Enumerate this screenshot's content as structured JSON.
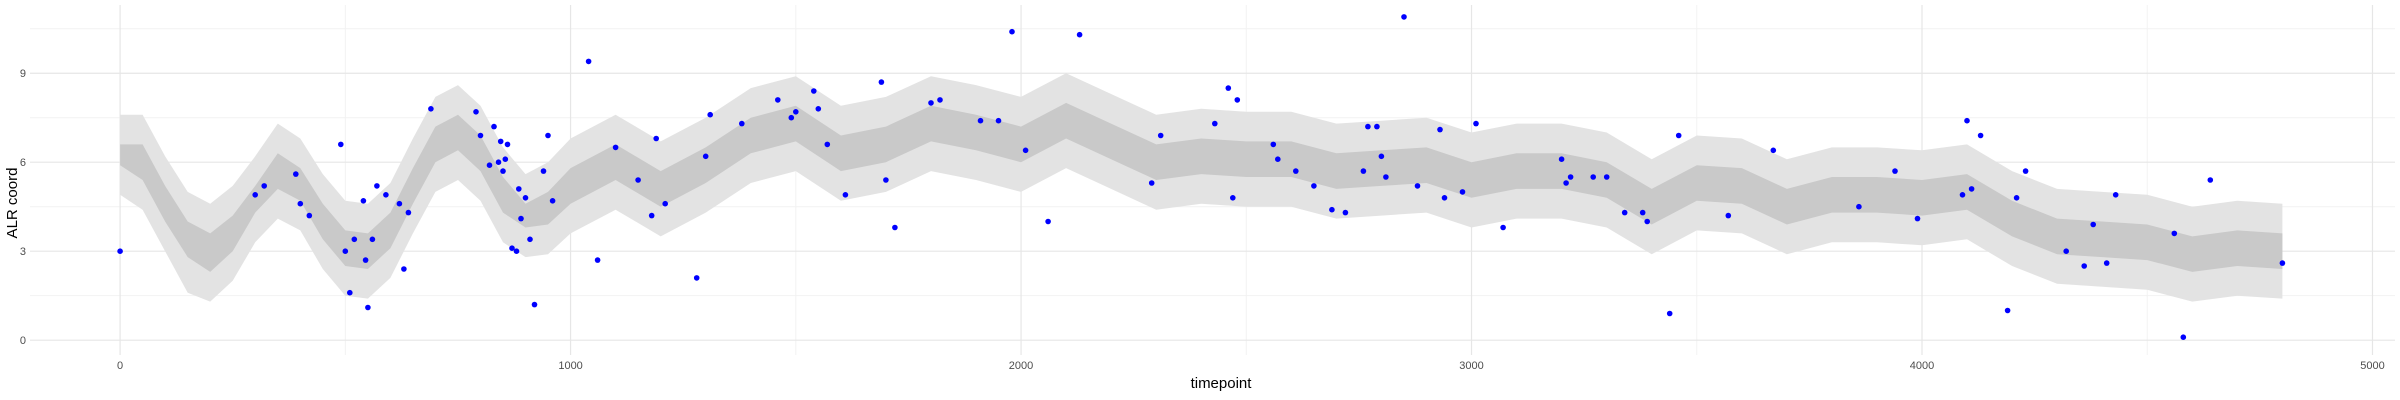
{
  "chart_data": {
    "type": "line",
    "title": "",
    "xlabel": "timepoint",
    "ylabel": "ALR coord",
    "xlim": [
      -200,
      5050
    ],
    "ylim": [
      -0.5,
      11.3
    ],
    "x_ticks": [
      0,
      1000,
      2000,
      3000,
      4000,
      5000
    ],
    "x_tick_labels": [
      "0",
      "1000",
      "2000",
      "3000",
      "4000",
      "5000"
    ],
    "y_ticks": [
      0,
      3,
      6,
      9
    ],
    "y_tick_labels": [
      "0",
      "3",
      "6",
      "9"
    ],
    "grid": true,
    "legend": "none",
    "colors": {
      "inner_band": "#c9c9c9",
      "outer_band": "#e3e3e3",
      "points": "#0000ff",
      "grid_major": "#e6e6e6",
      "grid_minor": "#f2f2f2"
    },
    "series": [
      {
        "kind": "band",
        "x": [
          0,
          50,
          100,
          150,
          200,
          250,
          300,
          350,
          400,
          450,
          500,
          550,
          600,
          650,
          700,
          750,
          800,
          850,
          900,
          950,
          1000,
          1100,
          1200,
          1300,
          1400,
          1500,
          1600,
          1700,
          1800,
          1900,
          2000,
          2100,
          2200,
          2300,
          2400,
          2500,
          2600,
          2700,
          2800,
          2900,
          3000,
          3100,
          3200,
          3300,
          3400,
          3500,
          3600,
          3700,
          3800,
          3900,
          4000,
          4100,
          4200,
          4300,
          4400,
          4500,
          4600,
          4700,
          4800
        ],
        "inner_low": [
          5.9,
          5.4,
          4.0,
          2.8,
          2.3,
          3.0,
          4.3,
          5.1,
          4.7,
          3.4,
          2.5,
          2.4,
          3.1,
          4.6,
          6.0,
          6.4,
          5.7,
          4.3,
          3.8,
          3.9,
          4.6,
          5.4,
          4.5,
          5.3,
          6.3,
          6.7,
          5.7,
          6.0,
          6.7,
          6.4,
          6.0,
          6.8,
          6.1,
          5.4,
          5.6,
          5.5,
          5.5,
          5.1,
          5.2,
          5.3,
          4.8,
          5.1,
          5.1,
          4.8,
          3.9,
          4.7,
          4.6,
          3.9,
          4.3,
          4.3,
          4.2,
          4.4,
          3.5,
          2.9,
          2.8,
          2.7,
          2.3,
          2.5,
          2.4
        ],
        "inner_high": [
          6.6,
          6.6,
          5.2,
          4.0,
          3.6,
          4.2,
          5.2,
          6.3,
          5.8,
          4.6,
          3.7,
          3.6,
          4.3,
          5.8,
          7.2,
          7.6,
          6.9,
          5.5,
          4.6,
          5.0,
          5.8,
          6.6,
          5.7,
          6.5,
          7.5,
          7.9,
          6.9,
          7.2,
          7.9,
          7.6,
          7.2,
          8.0,
          7.3,
          6.6,
          6.8,
          6.7,
          6.7,
          6.3,
          6.4,
          6.5,
          6.0,
          6.3,
          6.3,
          6.0,
          5.1,
          5.9,
          5.8,
          5.1,
          5.5,
          5.5,
          5.4,
          5.6,
          4.7,
          4.1,
          4.0,
          3.9,
          3.5,
          3.7,
          3.6
        ],
        "outer_low": [
          4.9,
          4.4,
          3.0,
          1.6,
          1.3,
          2.0,
          3.3,
          4.1,
          3.7,
          2.4,
          1.5,
          1.4,
          2.1,
          3.6,
          5.0,
          5.4,
          4.7,
          3.3,
          2.8,
          2.9,
          3.6,
          4.4,
          3.5,
          4.3,
          5.3,
          5.7,
          4.7,
          5.0,
          5.7,
          5.4,
          5.0,
          5.8,
          5.1,
          4.4,
          4.6,
          4.5,
          4.5,
          4.1,
          4.2,
          4.3,
          3.8,
          4.1,
          4.1,
          3.8,
          2.9,
          3.7,
          3.6,
          2.9,
          3.3,
          3.3,
          3.2,
          3.4,
          2.5,
          1.9,
          1.8,
          1.7,
          1.3,
          1.5,
          1.4
        ],
        "outer_high": [
          7.6,
          7.6,
          6.2,
          5.0,
          4.6,
          5.2,
          6.2,
          7.3,
          6.8,
          5.6,
          4.7,
          4.6,
          5.3,
          6.8,
          8.2,
          8.6,
          7.9,
          6.5,
          5.6,
          6.0,
          6.8,
          7.6,
          6.7,
          7.5,
          8.5,
          8.9,
          7.9,
          8.2,
          8.9,
          8.6,
          8.2,
          9.0,
          8.3,
          7.6,
          7.8,
          7.7,
          7.7,
          7.3,
          7.4,
          7.5,
          7.0,
          7.3,
          7.3,
          7.0,
          6.1,
          6.9,
          6.8,
          6.1,
          6.5,
          6.5,
          6.4,
          6.6,
          5.7,
          5.1,
          5.0,
          4.9,
          4.5,
          4.7,
          4.6
        ]
      },
      {
        "kind": "points",
        "x": [
          0,
          300,
          320,
          390,
          400,
          420,
          490,
          500,
          510,
          520,
          540,
          545,
          550,
          560,
          570,
          590,
          620,
          630,
          640,
          690,
          790,
          800,
          820,
          830,
          840,
          845,
          850,
          855,
          860,
          870,
          880,
          885,
          890,
          900,
          910,
          920,
          940,
          950,
          960,
          1040,
          1060,
          1100,
          1150,
          1180,
          1190,
          1210,
          1280,
          1300,
          1310,
          1380,
          1460,
          1490,
          1500,
          1540,
          1550,
          1570,
          1610,
          1690,
          1700,
          1720,
          1800,
          1820,
          1910,
          1950,
          1980,
          2010,
          2060,
          2130,
          2290,
          2310,
          2430,
          2460,
          2470,
          2480,
          2560,
          2570,
          2610,
          2650,
          2690,
          2720,
          2760,
          2770,
          2790,
          2800,
          2810,
          2850,
          2880,
          2930,
          2940,
          2980,
          3010,
          3070,
          3200,
          3210,
          3220,
          3270,
          3300,
          3340,
          3380,
          3390,
          3440,
          3460,
          3570,
          3670,
          3860,
          3940,
          3990,
          4090,
          4100,
          4110,
          4130,
          4190,
          4210,
          4230,
          4320,
          4360,
          4380,
          4410,
          4430,
          4560,
          4580,
          4640,
          4800
        ],
        "y": [
          3.0,
          4.9,
          5.2,
          5.6,
          4.6,
          4.2,
          6.6,
          3.0,
          1.6,
          3.4,
          4.7,
          2.7,
          1.1,
          3.4,
          5.2,
          4.9,
          4.6,
          2.4,
          4.3,
          7.8,
          7.7,
          6.9,
          5.9,
          7.2,
          6.0,
          6.7,
          5.7,
          6.1,
          6.6,
          3.1,
          3.0,
          5.1,
          4.1,
          4.8,
          3.4,
          1.2,
          5.7,
          6.9,
          4.7,
          9.4,
          2.7,
          6.5,
          5.4,
          4.2,
          6.8,
          4.6,
          2.1,
          6.2,
          7.6,
          7.3,
          8.1,
          7.5,
          7.7,
          8.4,
          7.8,
          6.6,
          4.9,
          8.7,
          5.4,
          3.8,
          8.0,
          8.1,
          7.4,
          7.4,
          10.4,
          6.4,
          4.0,
          10.3,
          5.3,
          6.9,
          7.3,
          8.5,
          4.8,
          8.1,
          6.6,
          6.1,
          5.7,
          5.2,
          4.4,
          4.3,
          5.7,
          7.2,
          7.2,
          6.2,
          5.5,
          10.9,
          5.2,
          7.1,
          4.8,
          5.0,
          7.3,
          3.8,
          6.1,
          5.3,
          5.5,
          5.5,
          5.5,
          4.3,
          4.3,
          4.0,
          0.9,
          6.9,
          4.2,
          6.4,
          4.5,
          5.7,
          4.1,
          4.9,
          7.4,
          5.1,
          6.9,
          1.0,
          4.8,
          5.7,
          3.0,
          2.5,
          3.9,
          2.6,
          4.9,
          3.6,
          0.1,
          5.4,
          2.6
        ]
      }
    ]
  }
}
